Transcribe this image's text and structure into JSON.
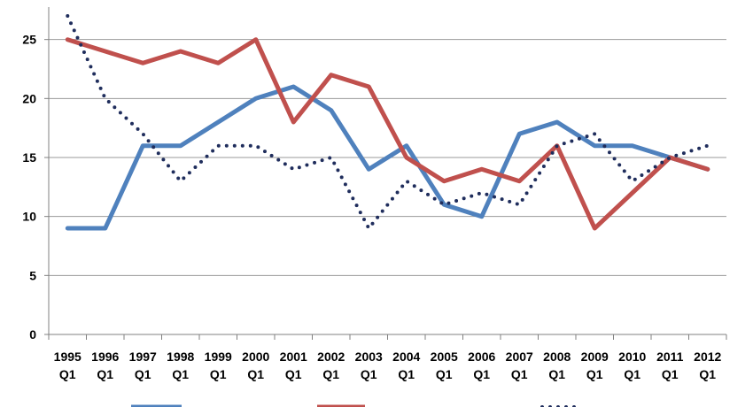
{
  "chart_data": {
    "type": "line",
    "title": "",
    "xlabel": "",
    "ylabel": "",
    "ylim": [
      0,
      27
    ],
    "yticks": [
      0,
      5,
      10,
      15,
      20,
      25
    ],
    "grid": "horizontal",
    "legend_position": "bottom",
    "categories": [
      [
        "1995",
        "Q1"
      ],
      [
        "1996",
        "Q1"
      ],
      [
        "1997",
        "Q1"
      ],
      [
        "1998",
        "Q1"
      ],
      [
        "1999",
        "Q1"
      ],
      [
        "2000",
        "Q1"
      ],
      [
        "2001",
        "Q1"
      ],
      [
        "2002",
        "Q1"
      ],
      [
        "2003",
        "Q1"
      ],
      [
        "2004",
        "Q1"
      ],
      [
        "2005",
        "Q1"
      ],
      [
        "2006",
        "Q1"
      ],
      [
        "2007",
        "Q1"
      ],
      [
        "2008",
        "Q1"
      ],
      [
        "2009",
        "Q1"
      ],
      [
        "2010",
        "Q1"
      ],
      [
        "2011",
        "Q1"
      ],
      [
        "2012",
        "Q1"
      ]
    ],
    "series": [
      {
        "color": "#4f81bd",
        "style": "solid",
        "values": [
          9,
          9,
          16,
          16,
          18,
          20,
          21,
          19,
          14,
          16,
          11,
          10,
          17,
          18,
          16,
          16,
          15,
          14
        ]
      },
      {
        "color": "#c0504d",
        "style": "solid",
        "values": [
          25,
          24,
          23,
          24,
          23,
          25,
          18,
          22,
          21,
          15,
          13,
          14,
          13,
          16,
          9,
          12,
          15,
          14
        ]
      },
      {
        "color": "#1f2d5c",
        "style": "dotted",
        "values": [
          27,
          20,
          17,
          13,
          16,
          16,
          14,
          15,
          9,
          13,
          11,
          12,
          11,
          16,
          17,
          13,
          15,
          16
        ]
      }
    ]
  }
}
